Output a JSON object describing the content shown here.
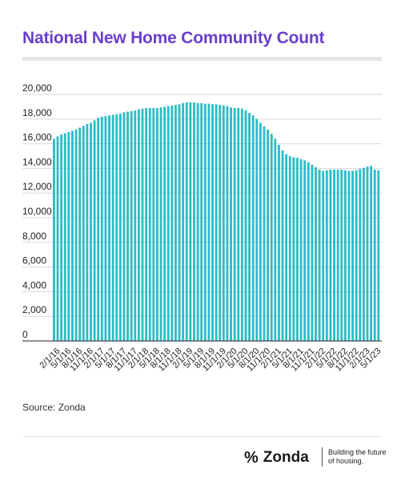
{
  "title": "National New Home Community Count",
  "source": "Source: Zonda",
  "brand": {
    "mark": "%",
    "name": "Zonda",
    "tagline": "Building the future of housing."
  },
  "colors": {
    "title": "#6a3fc9",
    "bar": "#2bbdc8",
    "grid": "#d9d9d9"
  },
  "chart_data": {
    "type": "bar",
    "title": "National New Home Community Count",
    "xlabel": "",
    "ylabel": "",
    "ylim": [
      0,
      20000
    ],
    "yticks": [
      0,
      2000,
      4000,
      6000,
      8000,
      10000,
      12000,
      14000,
      16000,
      18000,
      20000
    ],
    "ytick_labels": [
      "0",
      "2,000",
      "4,000",
      "6,000",
      "8,000",
      "10,000",
      "12,000",
      "14,000",
      "16,000",
      "18,000",
      "20,000"
    ],
    "grid": true,
    "categories": [
      "2/1/16",
      "3/1/16",
      "4/1/16",
      "5/1/16",
      "6/1/16",
      "7/1/16",
      "8/1/16",
      "9/1/16",
      "10/1/16",
      "11/1/16",
      "12/1/16",
      "1/1/17",
      "2/1/17",
      "3/1/17",
      "4/1/17",
      "5/1/17",
      "6/1/17",
      "7/1/17",
      "8/1/17",
      "9/1/17",
      "10/1/17",
      "11/1/17",
      "12/1/17",
      "1/1/18",
      "2/1/18",
      "3/1/18",
      "4/1/18",
      "5/1/18",
      "6/1/18",
      "7/1/18",
      "8/1/18",
      "9/1/18",
      "10/1/18",
      "11/1/18",
      "12/1/18",
      "1/1/19",
      "2/1/19",
      "3/1/19",
      "4/1/19",
      "5/1/19",
      "6/1/19",
      "7/1/19",
      "8/1/19",
      "9/1/19",
      "10/1/19",
      "11/1/19",
      "12/1/19",
      "1/1/20",
      "2/1/20",
      "3/1/20",
      "4/1/20",
      "5/1/20",
      "6/1/20",
      "7/1/20",
      "8/1/20",
      "9/1/20",
      "10/1/20",
      "11/1/20",
      "12/1/20",
      "1/1/21",
      "2/1/21",
      "3/1/21",
      "4/1/21",
      "5/1/21",
      "6/1/21",
      "7/1/21",
      "8/1/21",
      "9/1/21",
      "10/1/21",
      "11/1/21",
      "12/1/21",
      "1/1/22",
      "2/1/22",
      "3/1/22",
      "4/1/22",
      "5/1/22",
      "6/1/22",
      "7/1/22",
      "8/1/22",
      "9/1/22",
      "10/1/22",
      "11/1/22",
      "12/1/22",
      "1/1/23",
      "2/1/23",
      "3/1/23",
      "4/1/23",
      "5/1/23",
      "6/1/23"
    ],
    "xtick_labels": [
      "2/1/16",
      "5/1/16",
      "8/1/16",
      "11/1/16",
      "2/1/17",
      "5/1/17",
      "8/1/17",
      "11/1/17",
      "2/1/18",
      "5/1/18",
      "8/1/18",
      "11/1/18",
      "2/1/19",
      "5/1/19",
      "8/1/19",
      "11/1/19",
      "2/1/20",
      "5/1/20",
      "8/1/20",
      "11/1/20",
      "2/1/21",
      "5/1/21",
      "8/1/21",
      "11/1/21",
      "2/1/22",
      "5/1/22",
      "8/1/22",
      "11/1/22",
      "2/1/23",
      "5/1/23"
    ],
    "values": [
      16400,
      16600,
      16750,
      16850,
      16950,
      17050,
      17150,
      17300,
      17450,
      17600,
      17700,
      17900,
      18100,
      18200,
      18250,
      18300,
      18350,
      18400,
      18450,
      18550,
      18600,
      18650,
      18700,
      18800,
      18850,
      18900,
      18900,
      18900,
      18900,
      18950,
      19000,
      19050,
      19100,
      19150,
      19200,
      19300,
      19350,
      19350,
      19350,
      19300,
      19300,
      19250,
      19250,
      19200,
      19200,
      19150,
      19100,
      19050,
      18950,
      18900,
      18900,
      18850,
      18700,
      18500,
      18300,
      18000,
      17700,
      17400,
      17150,
      16800,
      16400,
      15900,
      15450,
      15150,
      15000,
      14900,
      14850,
      14750,
      14650,
      14500,
      14300,
      14100,
      13900,
      13800,
      13850,
      13900,
      13900,
      13900,
      13900,
      13850,
      13800,
      13800,
      13850,
      13950,
      14050,
      14150,
      14200,
      13900,
      13850
    ]
  }
}
